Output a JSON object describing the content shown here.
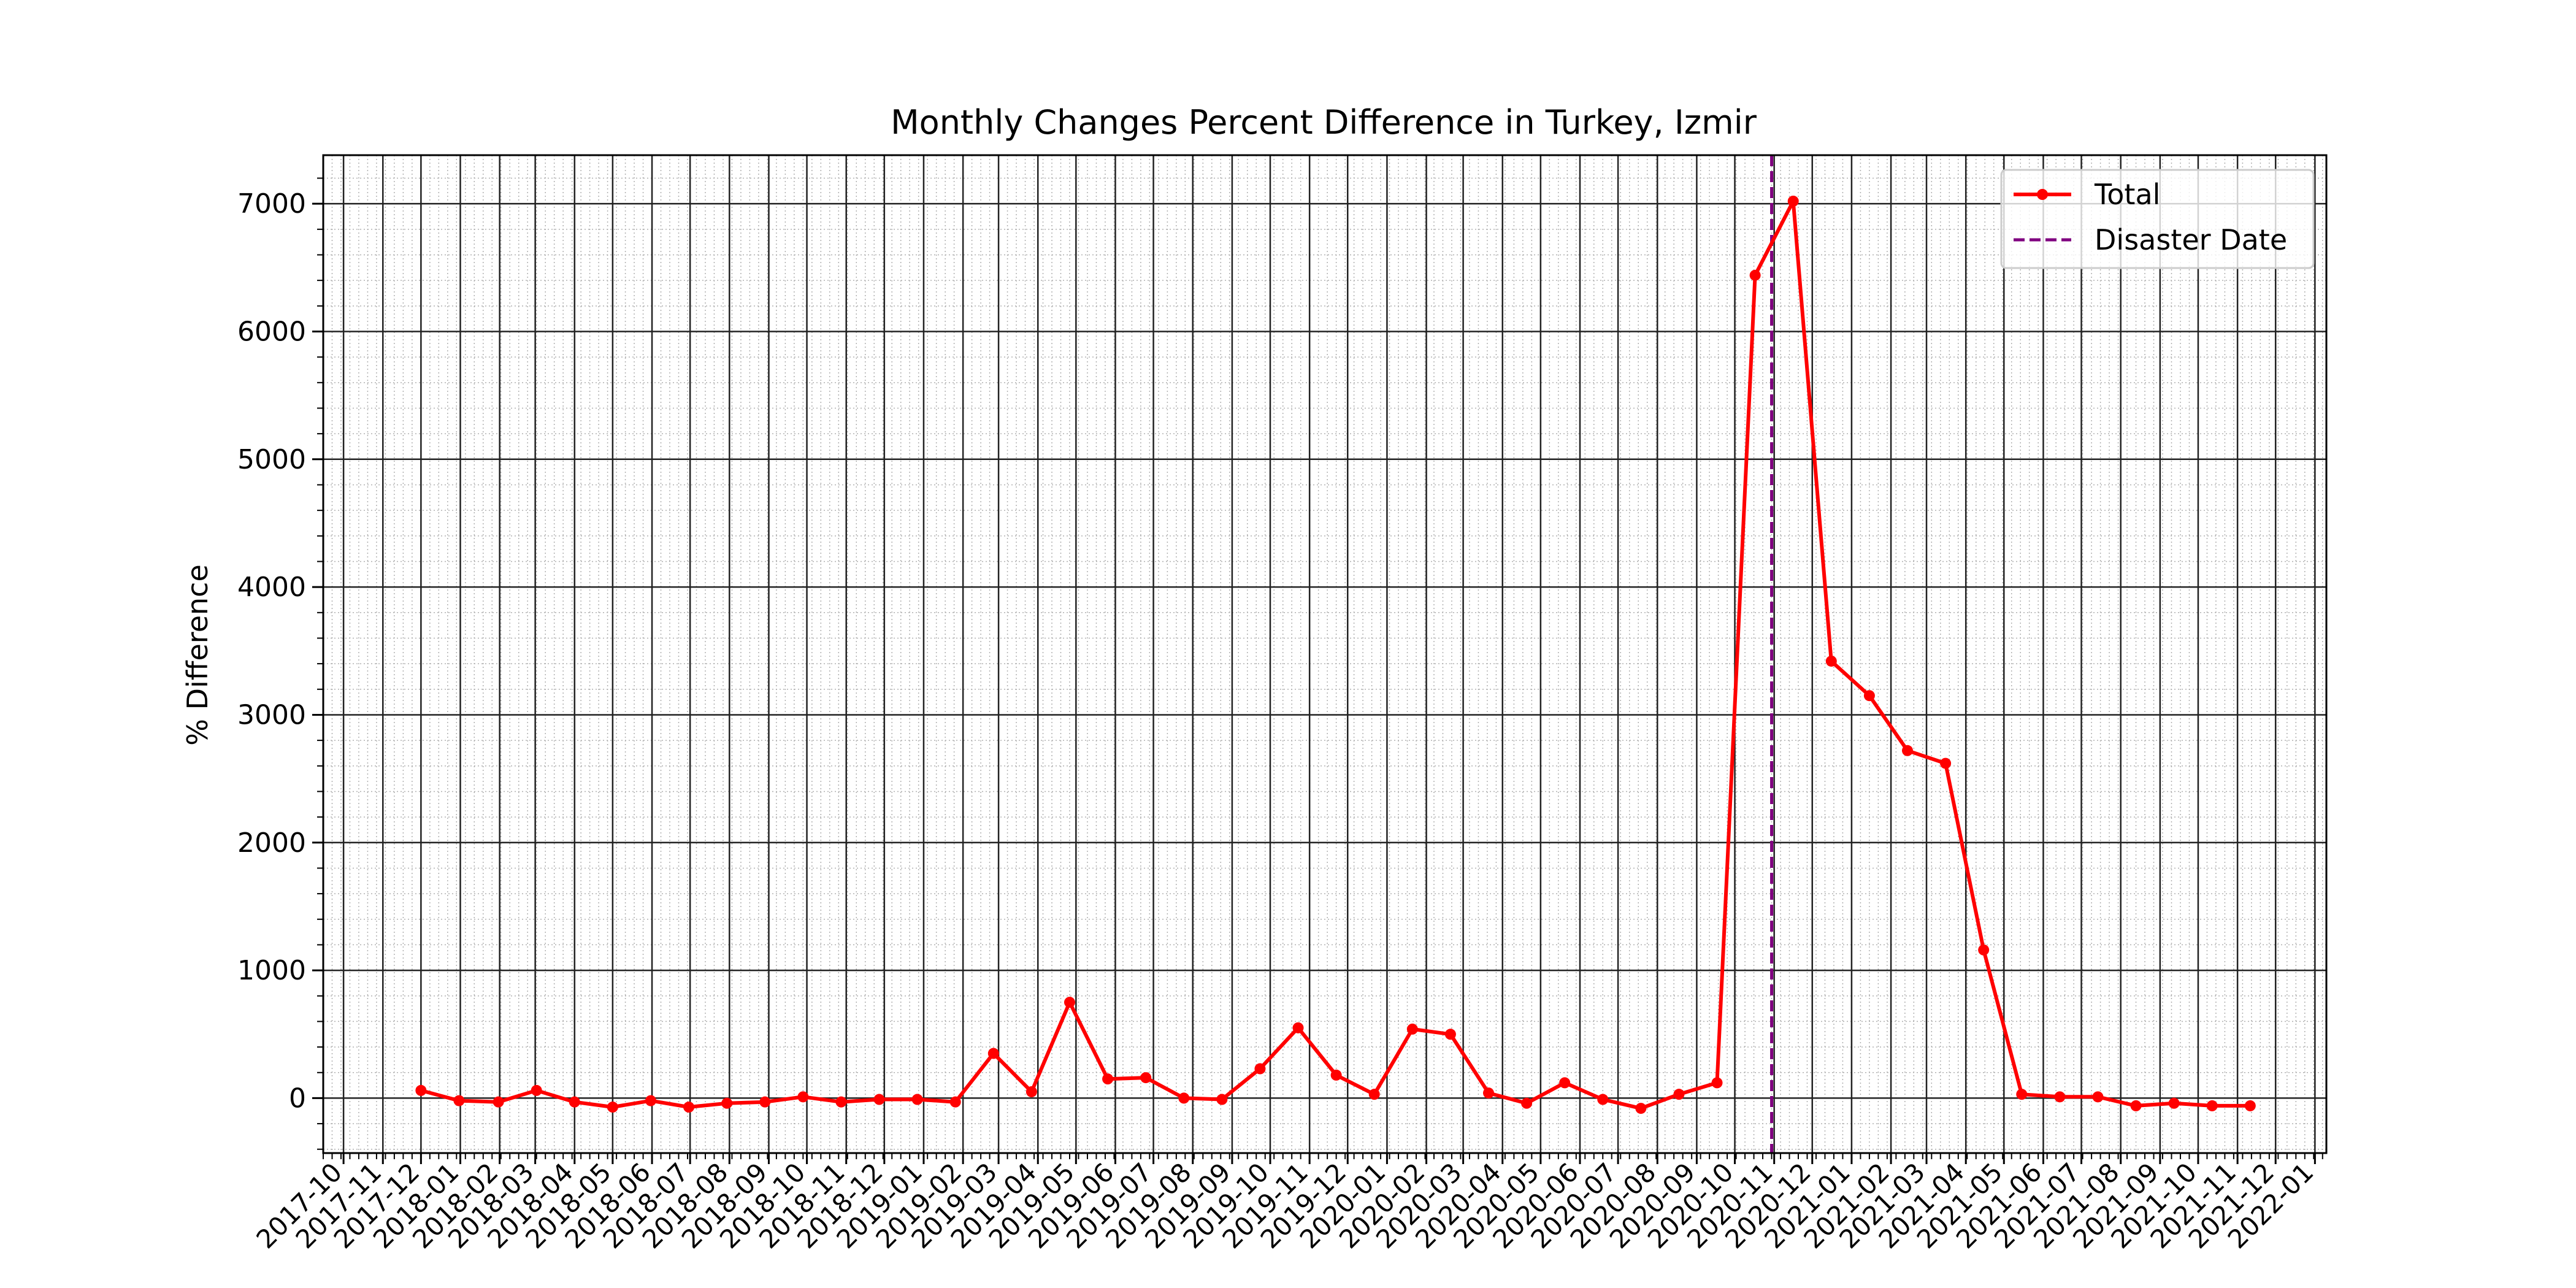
{
  "chart_data": {
    "type": "line",
    "title": "Monthly Changes Percent Difference in Turkey, Izmir",
    "xlabel": "",
    "ylabel": "% Difference",
    "x_ticks": [
      "2017-10",
      "2017-11",
      "2017-12",
      "2018-01",
      "2018-02",
      "2018-03",
      "2018-04",
      "2018-05",
      "2018-06",
      "2018-07",
      "2018-08",
      "2018-09",
      "2018-10",
      "2018-11",
      "2018-12",
      "2019-01",
      "2019-02",
      "2019-03",
      "2019-04",
      "2019-05",
      "2019-06",
      "2019-07",
      "2019-08",
      "2019-09",
      "2019-10",
      "2019-11",
      "2019-12",
      "2020-01",
      "2020-02",
      "2020-03",
      "2020-04",
      "2020-05",
      "2020-06",
      "2020-07",
      "2020-08",
      "2020-09",
      "2020-10",
      "2020-11",
      "2020-12",
      "2021-01",
      "2021-02",
      "2021-03",
      "2021-04",
      "2021-05",
      "2021-06",
      "2021-07",
      "2021-08",
      "2021-09",
      "2021-10",
      "2021-11",
      "2021-12",
      "2022-01"
    ],
    "y_ticks": [
      0,
      1000,
      2000,
      3000,
      4000,
      5000,
      6000,
      7000
    ],
    "ylim": [
      -430,
      7380
    ],
    "xlim": [
      "2017-09-15",
      "2022-01-10"
    ],
    "grid": true,
    "legend_position": "upper right",
    "series": [
      {
        "name": "Total",
        "color": "#ff0000",
        "marker": "circle",
        "points": [
          [
            "2017-12-01",
            60
          ],
          [
            "2017-12-31",
            -20
          ],
          [
            "2018-01-31",
            -30
          ],
          [
            "2018-03-02",
            60
          ],
          [
            "2018-04-01",
            -30
          ],
          [
            "2018-05-01",
            -70
          ],
          [
            "2018-05-31",
            -20
          ],
          [
            "2018-06-30",
            -70
          ],
          [
            "2018-07-30",
            -40
          ],
          [
            "2018-08-29",
            -30
          ],
          [
            "2018-09-28",
            10
          ],
          [
            "2018-10-28",
            -30
          ],
          [
            "2018-11-27",
            -10
          ],
          [
            "2018-12-27",
            -10
          ],
          [
            "2019-01-26",
            -30
          ],
          [
            "2019-02-25",
            350
          ],
          [
            "2019-03-27",
            50
          ],
          [
            "2019-04-26",
            750
          ],
          [
            "2019-05-26",
            150
          ],
          [
            "2019-06-25",
            160
          ],
          [
            "2019-07-25",
            0
          ],
          [
            "2019-08-24",
            -10
          ],
          [
            "2019-09-23",
            230
          ],
          [
            "2019-10-23",
            550
          ],
          [
            "2019-11-22",
            180
          ],
          [
            "2019-12-22",
            30
          ],
          [
            "2020-01-21",
            540
          ],
          [
            "2020-02-20",
            500
          ],
          [
            "2020-03-21",
            40
          ],
          [
            "2020-04-20",
            -40
          ],
          [
            "2020-05-20",
            120
          ],
          [
            "2020-06-19",
            -10
          ],
          [
            "2020-07-19",
            -80
          ],
          [
            "2020-08-18",
            30
          ],
          [
            "2020-09-17",
            120
          ],
          [
            "2020-10-17",
            6440
          ],
          [
            "2020-11-16",
            7020
          ],
          [
            "2020-12-16",
            3420
          ],
          [
            "2021-01-15",
            3150
          ],
          [
            "2021-02-14",
            2720
          ],
          [
            "2021-03-16",
            2620
          ],
          [
            "2021-04-15",
            1160
          ],
          [
            "2021-05-15",
            30
          ],
          [
            "2021-06-14",
            10
          ],
          [
            "2021-07-14",
            10
          ],
          [
            "2021-08-13",
            -60
          ],
          [
            "2021-09-12",
            -40
          ],
          [
            "2021-10-12",
            -60
          ],
          [
            "2021-11-11",
            -60
          ]
        ]
      }
    ],
    "vlines": [
      {
        "name": "Disaster Date",
        "date": "2020-10-30",
        "color": "#800080",
        "style": "dashed"
      }
    ],
    "legend": [
      {
        "label": "Total",
        "color": "#ff0000",
        "style": "line-marker"
      },
      {
        "label": "Disaster Date",
        "color": "#800080",
        "style": "dashed"
      }
    ]
  }
}
